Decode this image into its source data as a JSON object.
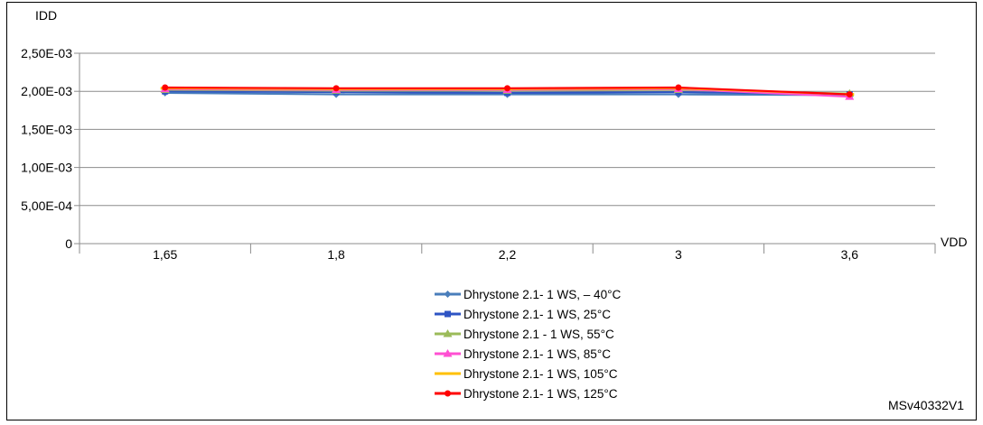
{
  "chart_data": {
    "type": "line",
    "ylabel": "IDD",
    "xlabel": "VDD",
    "categories": [
      "1,65",
      "1,8",
      "2,2",
      "3",
      "3,6"
    ],
    "ylim": [
      0,
      0.0025
    ],
    "yticks": [
      {
        "value": 0,
        "label": "0"
      },
      {
        "value": 0.0005,
        "label": "5,00E-04"
      },
      {
        "value": 0.001,
        "label": "1,00E-03"
      },
      {
        "value": 0.0015,
        "label": "1,50E-03"
      },
      {
        "value": 0.002,
        "label": "2,00E-03"
      },
      {
        "value": 0.0025,
        "label": "2,50E-03"
      }
    ],
    "grid": "horizontal",
    "legend_position": "bottom-center",
    "series": [
      {
        "name": "Dhrystone 2.1- 1 WS, – 40°C",
        "color": "#4a7ebb",
        "marker": "diamond",
        "values": [
          0.00198,
          0.00196,
          0.00196,
          0.00196,
          0.00195
        ]
      },
      {
        "name": "Dhrystone 2.1- 1 WS, 25°C",
        "color": "#2e54c4",
        "marker": "square",
        "values": [
          0.002,
          0.00199,
          0.00198,
          0.00199,
          0.00196
        ]
      },
      {
        "name": "Dhrystone 2.1 - 1 WS, 55°C",
        "color": "#9bbb59",
        "marker": "triangle",
        "values": [
          0.00202,
          0.00201,
          0.00201,
          0.00202,
          0.00197
        ]
      },
      {
        "name": "Dhrystone 2.1- 1 WS, 85°C",
        "color": "#ff4fd2",
        "marker": "triangle",
        "values": [
          0.00203,
          0.00202,
          0.00202,
          0.00203,
          0.00193
        ]
      },
      {
        "name": "Dhrystone 2.1- 1 WS, 105°C",
        "color": "#ffc000",
        "marker": "dash",
        "values": [
          0.00204,
          0.00203,
          0.00203,
          0.00204,
          0.00196
        ]
      },
      {
        "name": "Dhrystone 2.1- 1 WS, 125°C",
        "color": "#ff0000",
        "marker": "circle",
        "values": [
          0.00205,
          0.00204,
          0.00204,
          0.00205,
          0.00196
        ]
      }
    ]
  },
  "reference": "MSv40332V1"
}
